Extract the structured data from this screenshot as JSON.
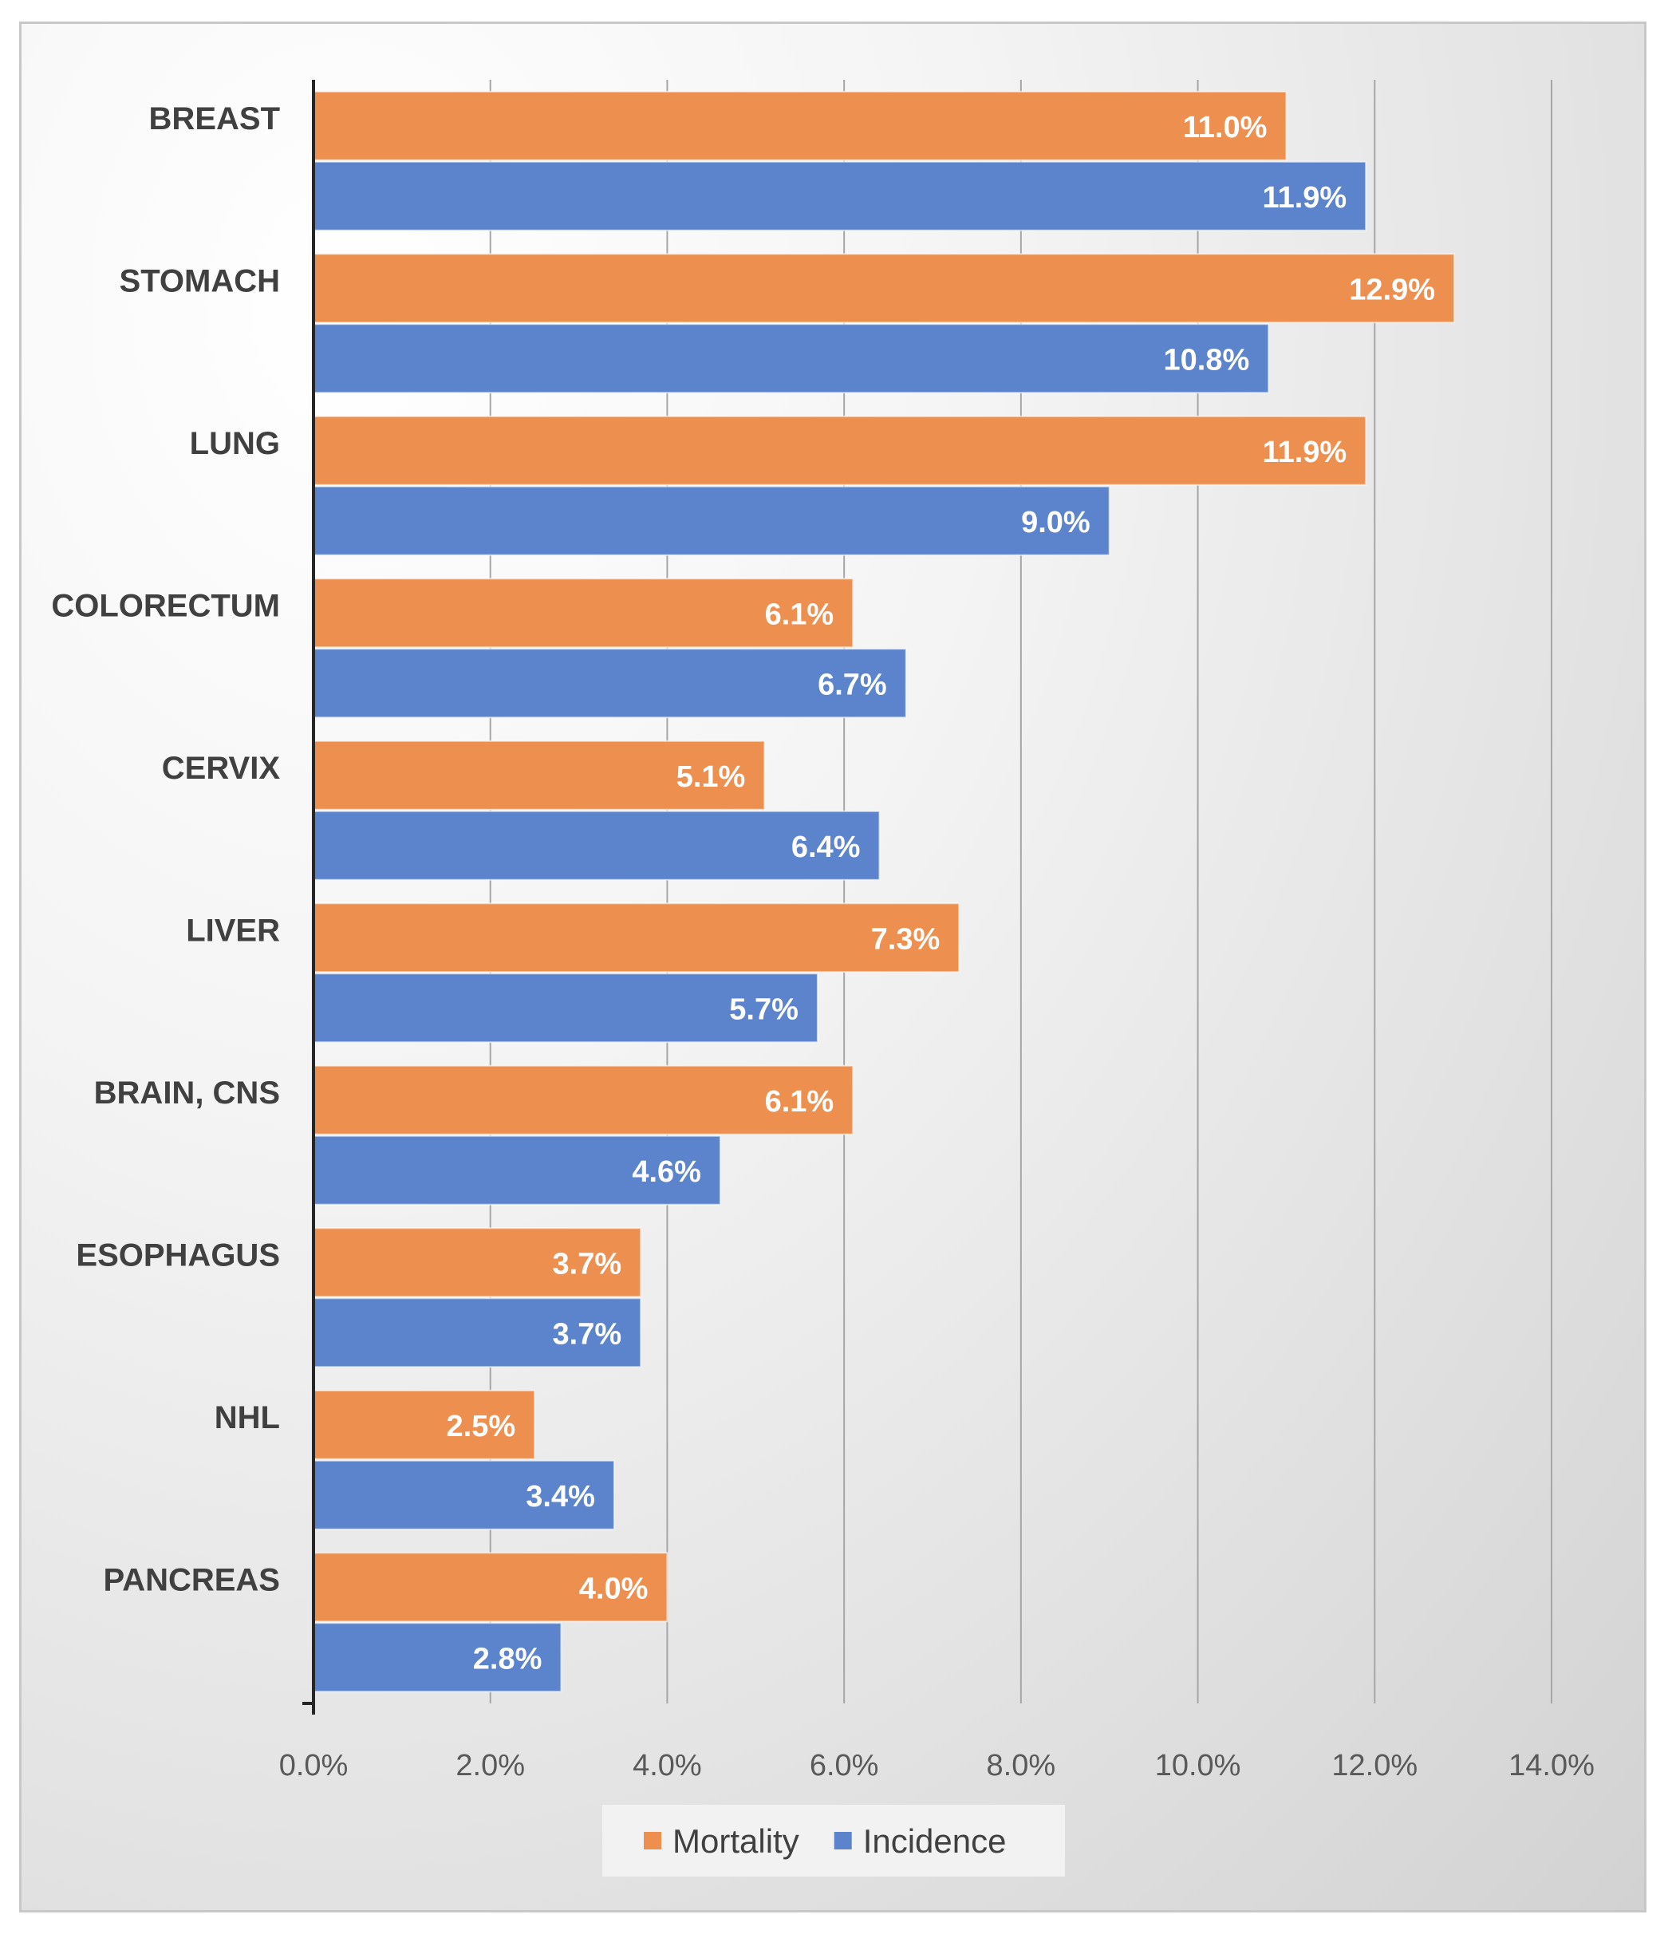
{
  "chart_data": {
    "type": "bar",
    "orientation": "horizontal",
    "categories": [
      "BREAST",
      "STOMACH",
      "LUNG",
      "COLORECTUM",
      "CERVIX",
      "LIVER",
      "BRAIN, CNS",
      "ESOPHAGUS",
      "NHL",
      "PANCREAS"
    ],
    "series": [
      {
        "name": "Mortality",
        "color": "#ED8F4E",
        "values": [
          11.0,
          12.9,
          11.9,
          6.1,
          5.1,
          7.3,
          6.1,
          3.7,
          2.5,
          4.0
        ]
      },
      {
        "name": "Incidence",
        "color": "#5B84CC",
        "values": [
          11.9,
          10.8,
          9.0,
          6.7,
          6.4,
          5.7,
          4.6,
          3.7,
          3.4,
          2.8
        ]
      }
    ],
    "xlim": [
      0,
      14
    ],
    "xticks": [
      0,
      2,
      4,
      6,
      8,
      10,
      12,
      14
    ],
    "xtick_labels": [
      "0.0%",
      "2.0%",
      "4.0%",
      "6.0%",
      "8.0%",
      "10.0%",
      "12.0%",
      "14.0%"
    ],
    "value_format_suffix": "%",
    "title": "",
    "xlabel": "",
    "ylabel": "",
    "grid": true,
    "legend_position": "bottom"
  }
}
